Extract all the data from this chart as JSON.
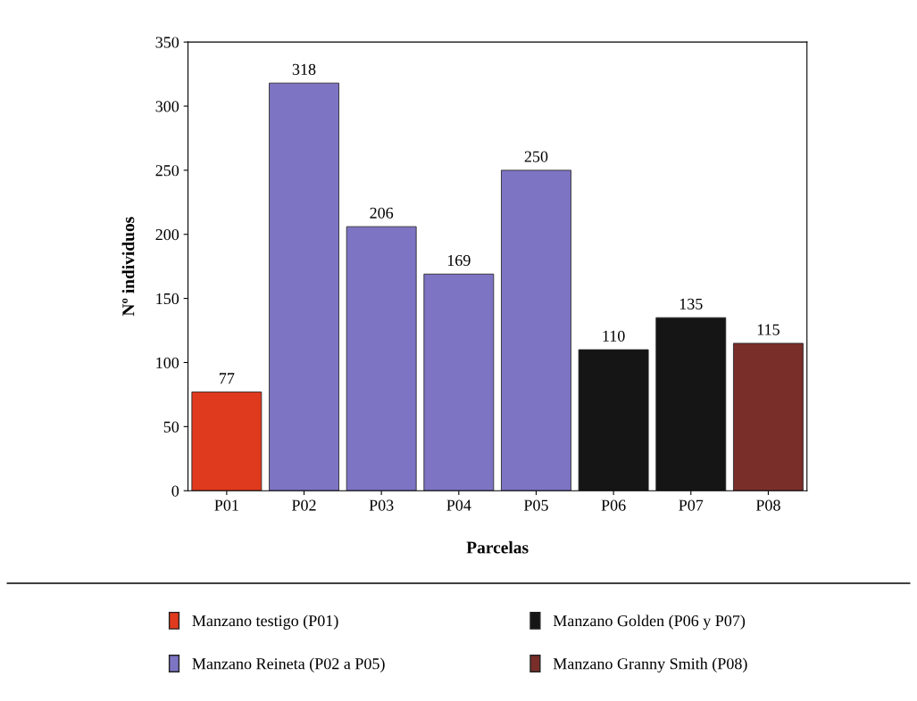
{
  "chart_data": {
    "type": "bar",
    "xlabel": "Parcelas",
    "ylabel": "Nº individuos",
    "categories": [
      "P01",
      "P02",
      "P03",
      "P04",
      "P05",
      "P06",
      "P07",
      "P08"
    ],
    "series": [
      {
        "name": "Manzano testigo (P01)",
        "color": "#e03a1e",
        "values": [
          77,
          null,
          null,
          null,
          null,
          null,
          null,
          null
        ]
      },
      {
        "name": "Manzano Reineta (P02 a P05)",
        "color": "#7e74c4",
        "values": [
          null,
          318,
          206,
          169,
          250,
          null,
          null,
          null
        ]
      },
      {
        "name": "Manzano Golden (P06 y P07)",
        "color": "#151515",
        "values": [
          null,
          null,
          null,
          null,
          null,
          110,
          135,
          null
        ]
      },
      {
        "name": "Manzano Granny Smith (P08)",
        "color": "#7a2e2a",
        "values": [
          null,
          null,
          null,
          null,
          null,
          null,
          null,
          115
        ]
      }
    ],
    "ylim": [
      0,
      350
    ],
    "yticks": [
      0,
      50,
      100,
      150,
      200,
      250,
      300,
      350
    ],
    "data_labels": true,
    "grid": false,
    "legend": "bottom"
  }
}
